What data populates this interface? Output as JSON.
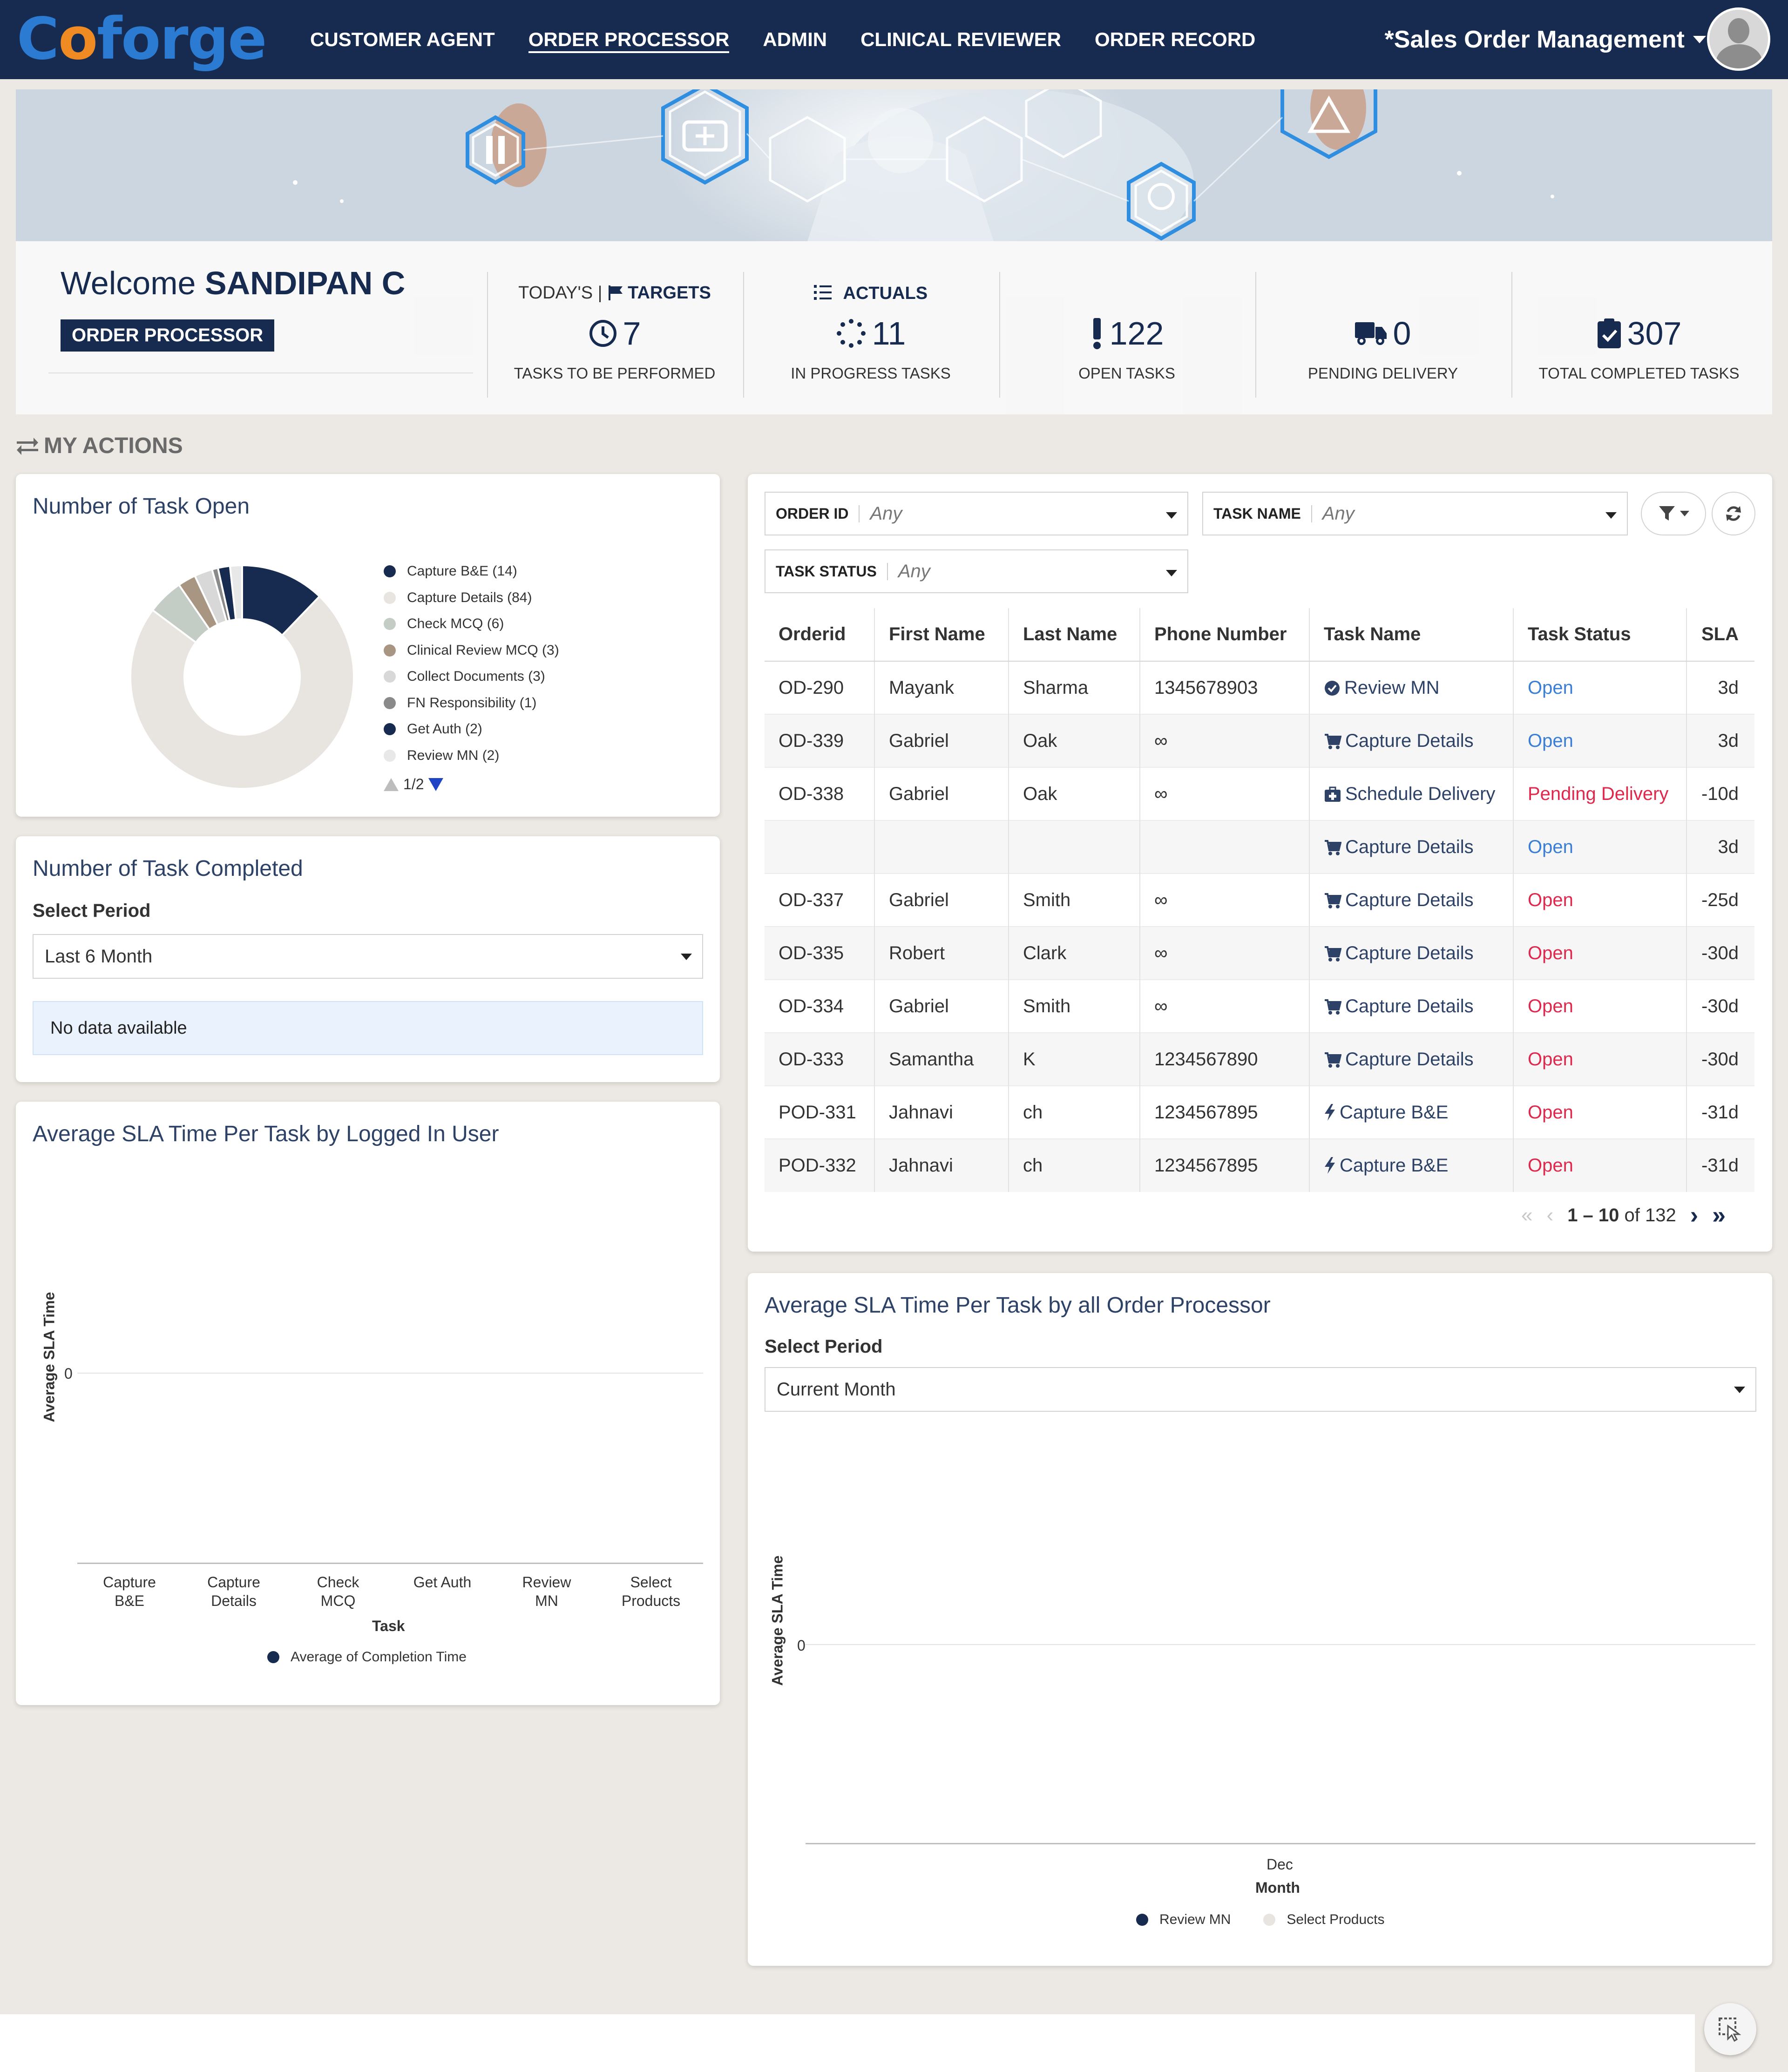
{
  "nav": {
    "logo": "Coforge",
    "links": [
      "CUSTOMER AGENT",
      "ORDER PROCESSOR",
      "ADMIN",
      "CLINICAL REVIEWER",
      "ORDER RECORD"
    ],
    "active_index": 1,
    "app_switcher": "*Sales Order Management"
  },
  "welcome": {
    "greeting": "Welcome",
    "user": "SANDIPAN C",
    "role": "ORDER PROCESSOR"
  },
  "metrics": {
    "targets_prefix": "TODAY'S |",
    "targets_label": "TARGETS",
    "actuals_label": "ACTUALS",
    "items": [
      {
        "value": "7",
        "label": "TASKS TO BE PERFORMED",
        "icon": "clock-icon"
      },
      {
        "value": "11",
        "label": "IN PROGRESS TASKS",
        "icon": "spinner-icon"
      },
      {
        "value": "122",
        "label": "OPEN TASKS",
        "icon": "exclamation-icon"
      },
      {
        "value": "0",
        "label": "PENDING DELIVERY",
        "icon": "truck-icon"
      },
      {
        "value": "307",
        "label": "TOTAL COMPLETED TASKS",
        "icon": "clipboard-check-icon"
      }
    ]
  },
  "my_actions": "MY ACTIONS",
  "task_open": {
    "title": "Number of Task Open",
    "legend": [
      {
        "label": "Capture B&E (14)",
        "value": 14,
        "color": "#172a4f"
      },
      {
        "label": "Capture Details (84)",
        "value": 84,
        "color": "#e8e4df"
      },
      {
        "label": "Check MCQ (6)",
        "value": 6,
        "color": "#c4ccc6"
      },
      {
        "label": "Clinical Review MCQ (3)",
        "value": 3,
        "color": "#a89682"
      },
      {
        "label": "Collect Documents (3)",
        "value": 3,
        "color": "#d8d8d8"
      },
      {
        "label": "FN Responsibility (1)",
        "value": 1,
        "color": "#8a8a8a"
      },
      {
        "label": "Get Auth (2)",
        "value": 2,
        "color": "#172a4f"
      },
      {
        "label": "Review MN (2)",
        "value": 2,
        "color": "#e8e8e8"
      }
    ],
    "page": "1/2"
  },
  "task_completed": {
    "title": "Number of Task Completed",
    "period_label": "Select Period",
    "period_value": "Last 6 Month",
    "no_data": "No data available"
  },
  "sla_user": {
    "title": "Average SLA Time Per Task by Logged In User",
    "ylabel": "Average SLA Time",
    "xlabel": "Task",
    "y_tick": "0",
    "categories": [
      "Capture B&E",
      "Capture Details",
      "Check MCQ",
      "Get Auth",
      "Review MN",
      "Select Products"
    ],
    "legend": "Average of Completion Time"
  },
  "filters": {
    "order_id_label": "ORDER ID",
    "order_id_value": "Any",
    "task_name_label": "TASK NAME",
    "task_name_value": "Any",
    "task_status_label": "TASK STATUS",
    "task_status_value": "Any"
  },
  "table": {
    "headers": [
      "Orderid",
      "First Name",
      "Last Name",
      "Phone Number",
      "Task Name",
      "Task Status",
      "SLA"
    ],
    "rows": [
      {
        "id": "OD-290",
        "first": "Mayank",
        "last": "Sharma",
        "phone": "1345678903",
        "task": "Review MN",
        "icon": "check-circle-icon",
        "status": "Open",
        "status_color": "blue",
        "sla": "3d"
      },
      {
        "id": "OD-339",
        "first": "Gabriel",
        "last": "Oak",
        "phone": "∞",
        "task": "Capture Details",
        "icon": "cart-icon",
        "status": "Open",
        "status_color": "blue",
        "sla": "3d"
      },
      {
        "id": "OD-338",
        "first": "Gabriel",
        "last": "Oak",
        "phone": "∞",
        "task": "Schedule Delivery",
        "icon": "medkit-icon",
        "status": "Pending Delivery",
        "status_color": "red",
        "sla": "-10d"
      },
      {
        "id": "",
        "first": "",
        "last": "",
        "phone": "",
        "task": "Capture Details",
        "icon": "cart-icon",
        "status": "Open",
        "status_color": "blue",
        "sla": "3d"
      },
      {
        "id": "OD-337",
        "first": "Gabriel",
        "last": "Smith",
        "phone": "∞",
        "task": "Capture Details",
        "icon": "cart-icon",
        "status": "Open",
        "status_color": "red",
        "sla": "-25d"
      },
      {
        "id": "OD-335",
        "first": "Robert",
        "last": "Clark",
        "phone": "∞",
        "task": "Capture Details",
        "icon": "cart-icon",
        "status": "Open",
        "status_color": "red",
        "sla": "-30d"
      },
      {
        "id": "OD-334",
        "first": "Gabriel",
        "last": "Smith",
        "phone": "∞",
        "task": "Capture Details",
        "icon": "cart-icon",
        "status": "Open",
        "status_color": "red",
        "sla": "-30d"
      },
      {
        "id": "OD-333",
        "first": "Samantha",
        "last": "K",
        "phone": "1234567890",
        "task": "Capture Details",
        "icon": "cart-icon",
        "status": "Open",
        "status_color": "red",
        "sla": "-30d"
      },
      {
        "id": "POD-331",
        "first": "Jahnavi",
        "last": "ch",
        "phone": "1234567895",
        "task": "Capture B&E",
        "icon": "bolt-icon",
        "status": "Open",
        "status_color": "red",
        "sla": "-31d"
      },
      {
        "id": "POD-332",
        "first": "Jahnavi",
        "last": "ch",
        "phone": "1234567895",
        "task": "Capture B&E",
        "icon": "bolt-icon",
        "status": "Open",
        "status_color": "red",
        "sla": "-31d"
      }
    ],
    "pager_range": "1 – 10",
    "pager_of": "of 132"
  },
  "sla_all": {
    "title": "Average SLA Time Per Task by all Order Processor",
    "period_label": "Select Period",
    "period_value": "Current Month",
    "ylabel": "Average SLA Time",
    "xlabel": "Month",
    "y_tick": "0",
    "x_tick": "Dec",
    "legend": [
      {
        "label": "Review MN",
        "color": "#172a4f"
      },
      {
        "label": "Select Products",
        "color": "#e8e4df"
      }
    ]
  },
  "colors": {
    "navy": "#172a4f",
    "open_blue": "#3a7fd5",
    "alert_red": "#e0284d",
    "logo_blue": "#2b7bd2",
    "logo_orange": "#f08a22"
  }
}
